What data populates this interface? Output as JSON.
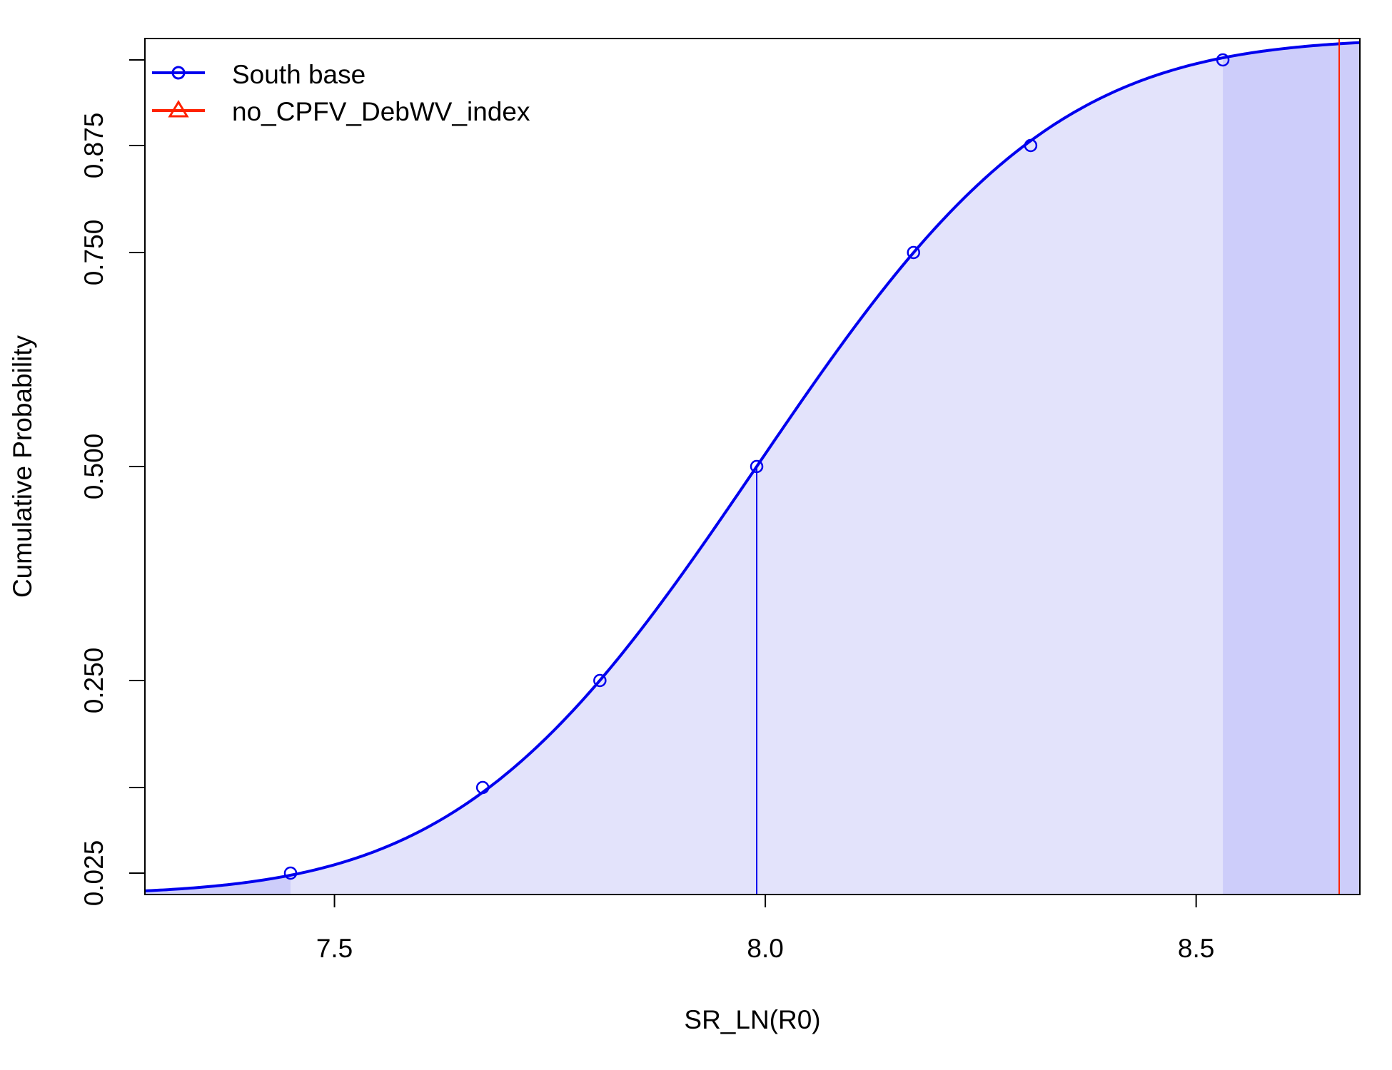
{
  "chart_data": {
    "type": "line",
    "xlabel": "SR_LN(R0)",
    "ylabel": "Cumulative Probability",
    "xlim": [
      7.28,
      8.69
    ],
    "ylim": [
      0.0,
      1.0
    ],
    "x_ticks": [
      7.5,
      8.0,
      8.5
    ],
    "x_tick_labels": [
      "7.5",
      "8.0",
      "8.5"
    ],
    "y_ticks": [
      0.025,
      0.125,
      0.25,
      0.5,
      0.75,
      0.875,
      0.975
    ],
    "y_tick_labels": [
      "0.025",
      "",
      "0.250",
      "0.500",
      "0.750",
      "0.875",
      ""
    ],
    "series": [
      {
        "name": "South base",
        "color": "#0000ee",
        "marker": "circle",
        "mean": 7.99,
        "sd": 0.27,
        "markers_x": [
          7.449,
          7.672,
          7.808,
          7.99,
          8.172,
          8.308,
          8.531
        ],
        "markers_y": [
          0.025,
          0.125,
          0.25,
          0.5,
          0.75,
          0.875,
          0.975
        ],
        "median_x": 7.99,
        "shade_light_color": "#e3e3fb",
        "shade_dark_color": "#cdcdfa",
        "interval_95": [
          7.449,
          8.531
        ]
      },
      {
        "name": "no_CPFV_DebWV_index",
        "color": "#ff2200",
        "marker": "triangle",
        "vline_x": 8.666
      }
    ],
    "legend_position": "top-left",
    "grid": false
  }
}
